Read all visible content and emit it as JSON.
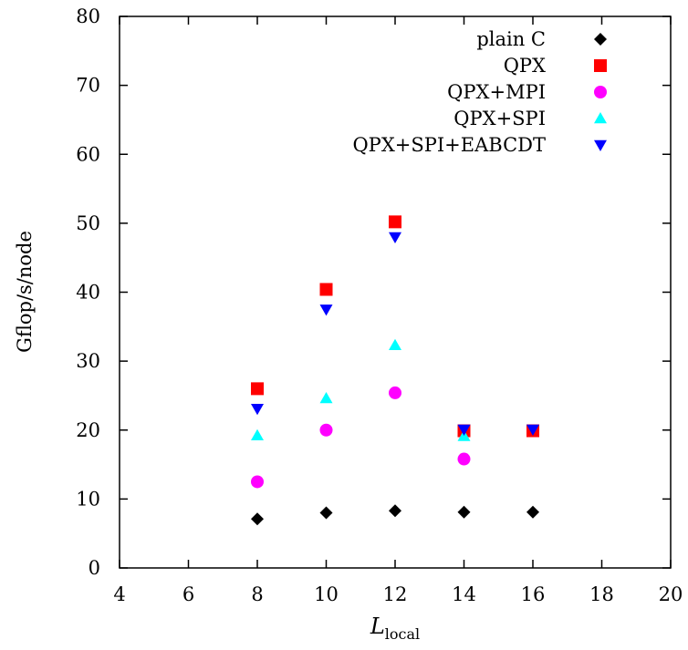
{
  "chart_data": {
    "type": "scatter",
    "title": "",
    "xlabel_main": "L",
    "xlabel_sub": "local",
    "ylabel": "Gflop/s/node",
    "xlim": [
      4,
      20
    ],
    "ylim": [
      0,
      80
    ],
    "xticks": [
      "4",
      "6",
      "8",
      "10",
      "12",
      "14",
      "16",
      "18",
      "20"
    ],
    "yticks": [
      "0",
      "10",
      "20",
      "30",
      "40",
      "50",
      "60",
      "70",
      "80"
    ],
    "grid": false,
    "legend_position": "top-right",
    "series": [
      {
        "name": "plain C",
        "marker": "diamond",
        "color": "#000000",
        "points": [
          [
            8,
            7.1
          ],
          [
            10,
            8.0
          ],
          [
            12,
            8.3
          ],
          [
            14,
            8.1
          ],
          [
            16,
            8.1
          ]
        ]
      },
      {
        "name": "QPX",
        "marker": "square",
        "color": "#ff0000",
        "points": [
          [
            8,
            26.0
          ],
          [
            10,
            40.4
          ],
          [
            12,
            50.2
          ],
          [
            14,
            19.9
          ],
          [
            16,
            19.9
          ]
        ]
      },
      {
        "name": "QPX+MPI",
        "marker": "circle",
        "color": "#ff00ff",
        "points": [
          [
            8,
            12.5
          ],
          [
            10,
            20.0
          ],
          [
            12,
            25.4
          ],
          [
            14,
            15.8
          ]
        ]
      },
      {
        "name": "QPX+SPI",
        "marker": "triangle-up",
        "color": "#00ffff",
        "points": [
          [
            8,
            19.2
          ],
          [
            10,
            24.6
          ],
          [
            12,
            32.3
          ],
          [
            14,
            19.1
          ]
        ]
      },
      {
        "name": "QPX+SPI+EABCDT",
        "marker": "triangle-down",
        "color": "#0000ff",
        "points": [
          [
            8,
            23.1
          ],
          [
            10,
            37.5
          ],
          [
            12,
            48.0
          ],
          [
            14,
            20.1
          ],
          [
            16,
            20.1
          ]
        ]
      }
    ]
  }
}
